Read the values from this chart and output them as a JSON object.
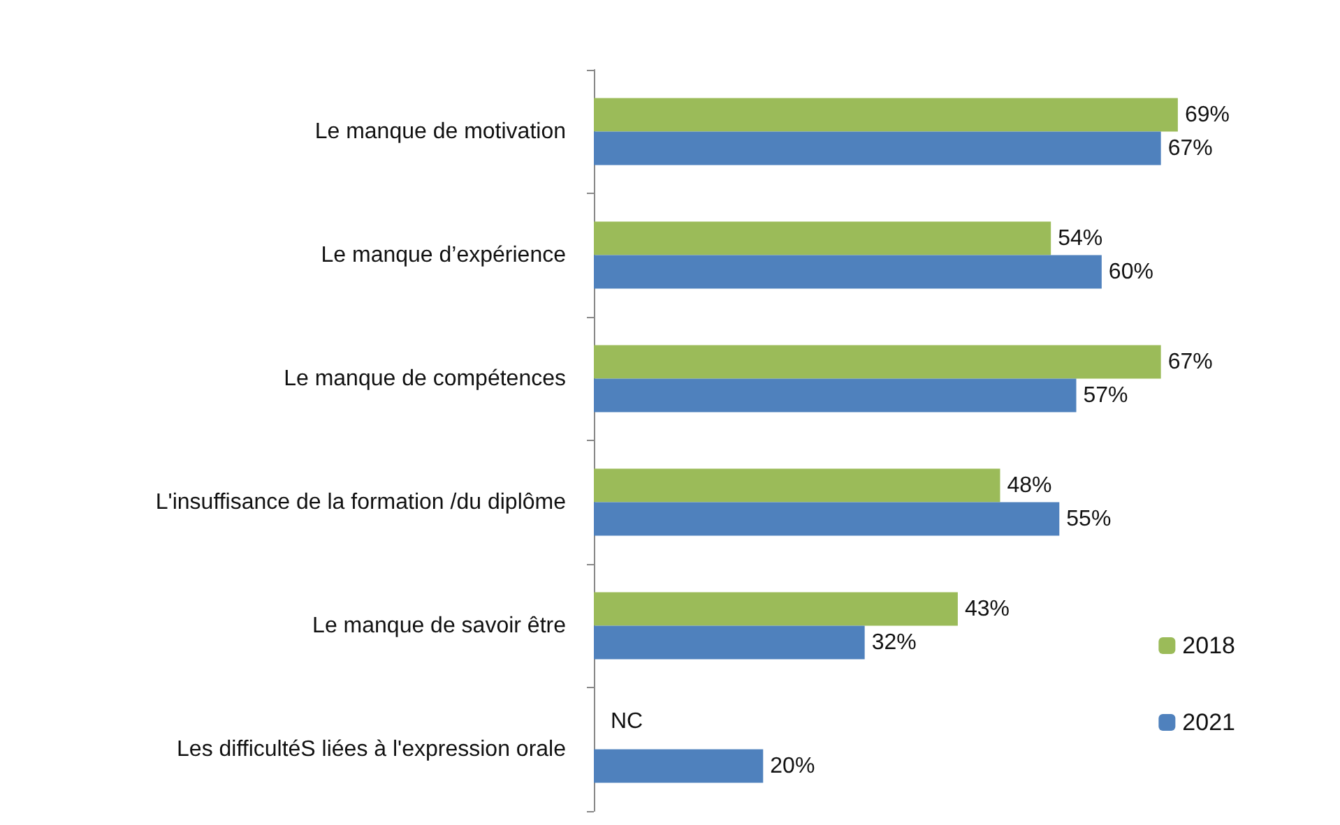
{
  "chart_data": {
    "type": "bar",
    "orientation": "horizontal",
    "categories": [
      "Le manque de motivation",
      "Le manque d’expérience",
      "Le manque de compétences",
      "L'insuffisance de la formation /du diplôme",
      "Le manque de savoir être",
      "Les difficultéS liées à l'expression orale"
    ],
    "series": [
      {
        "name": "2018",
        "color": "#9bbb59",
        "values": [
          69,
          54,
          67,
          48,
          43,
          null
        ],
        "value_labels": [
          "69%",
          "54%",
          "67%",
          "48%",
          "43%",
          "NC"
        ]
      },
      {
        "name": "2021",
        "color": "#4f81bd",
        "values": [
          67,
          60,
          57,
          55,
          32,
          20
        ],
        "value_labels": [
          "67%",
          "60%",
          "57%",
          "55%",
          "32%",
          "20%"
        ]
      }
    ],
    "legend": "bottom right",
    "grid": false
  }
}
